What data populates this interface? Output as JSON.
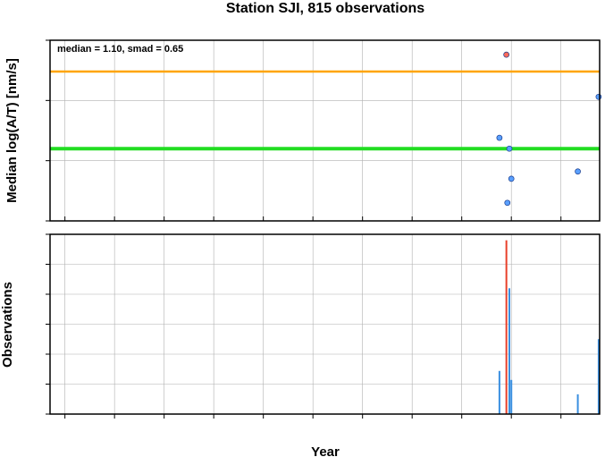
{
  "chart_data": [
    {
      "type": "scatter",
      "title": "Station SJI, 815 observations",
      "ylabel": "Median log(A/T) [nm/s]",
      "annotation": "median = 1.10, smad = 0.65",
      "xlim": [
        1963.5,
        2018.9
      ],
      "ylim": [
        0.5,
        2.0
      ],
      "yticks": [
        "0.5",
        "1.0",
        "1.5",
        "2.0"
      ],
      "grid": true,
      "hlines": [
        {
          "y": 1.74,
          "color": "#ffa500"
        },
        {
          "y": 1.1,
          "color": "#22dd22"
        }
      ],
      "points": [
        {
          "x": 2009.5,
          "y": 1.88,
          "color": "#ff6a5a"
        },
        {
          "x": 2008.8,
          "y": 1.19,
          "color": "#5aa0ff"
        },
        {
          "x": 2009.8,
          "y": 1.1,
          "color": "#5aa0ff"
        },
        {
          "x": 2010.0,
          "y": 0.85,
          "color": "#5aa0ff"
        },
        {
          "x": 2009.6,
          "y": 0.65,
          "color": "#5aa0ff"
        },
        {
          "x": 2016.7,
          "y": 0.91,
          "color": "#5aa0ff"
        },
        {
          "x": 2018.8,
          "y": 1.53,
          "color": "#5aa0ff"
        }
      ]
    },
    {
      "type": "bar",
      "ylabel": "Observations",
      "xlabel": "Year",
      "xlim": [
        1963.5,
        2018.9
      ],
      "ylim": [
        0,
        300
      ],
      "yticks": [
        "0",
        "50",
        "100",
        "150",
        "200",
        "250",
        "300"
      ],
      "xticks": [
        "1965",
        "1970",
        "1975",
        "1980",
        "1985",
        "1990",
        "1995",
        "2000",
        "2005",
        "2010",
        "2015"
      ],
      "grid": true,
      "bars": [
        {
          "x": 2008.8,
          "value": 72,
          "color": "#3a8fe0"
        },
        {
          "x": 2009.5,
          "value": 290,
          "color": "#e8402a"
        },
        {
          "x": 2009.8,
          "value": 210,
          "color": "#3a8fe0"
        },
        {
          "x": 2010.0,
          "value": 57,
          "color": "#3a8fe0"
        },
        {
          "x": 2016.7,
          "value": 33,
          "color": "#3a8fe0"
        },
        {
          "x": 2018.8,
          "value": 125,
          "color": "#3a8fe0"
        }
      ]
    }
  ]
}
